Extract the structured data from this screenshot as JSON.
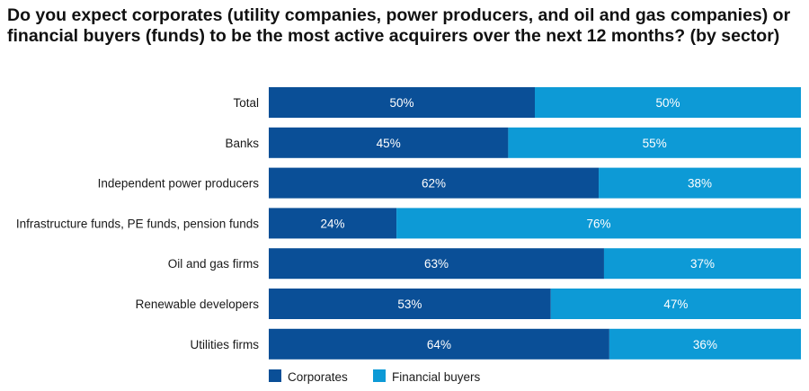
{
  "chart_data": {
    "type": "bar",
    "orientation": "horizontal",
    "stacked": true,
    "title": "Do you expect corporates (utility companies, power producers, and oil and gas companies) or financial buyers (funds) to be the most active acquirers over the next 12 months? (by sector)",
    "categories": [
      "Total",
      "Banks",
      "Independent power producers",
      "Infrastructure funds, PE funds, pension funds",
      "Oil and gas firms",
      "Renewable developers",
      "Utilities firms"
    ],
    "series": [
      {
        "name": "Corporates",
        "color": "#0a4f97",
        "values": [
          50,
          45,
          62,
          24,
          63,
          53,
          64
        ]
      },
      {
        "name": "Financial buyers",
        "color": "#0d9ad6",
        "values": [
          50,
          55,
          38,
          76,
          37,
          47,
          36
        ]
      }
    ],
    "value_suffix": "%",
    "xlim": [
      0,
      100
    ],
    "grid": false,
    "legend_position": "bottom-left"
  }
}
